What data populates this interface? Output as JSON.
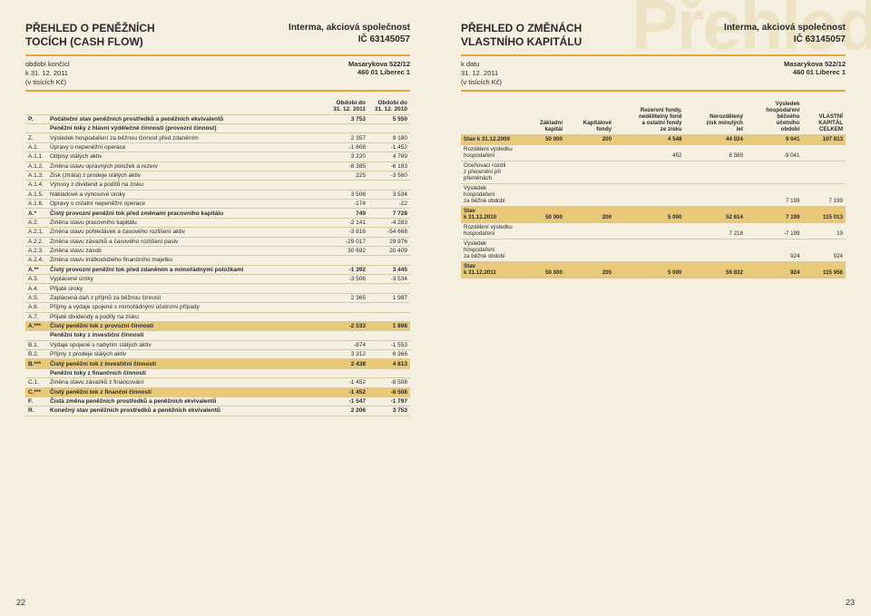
{
  "watermark": "Přehled",
  "left": {
    "title1": "PŘEHLED O PENĚŽNÍCH",
    "title2": "TOCÍCH (CASH FLOW)",
    "company1": "Interma, akciová společnost",
    "company2": "IČ 63145057",
    "period1": "období končící",
    "period2": "k 31. 12. 2011",
    "period3": "(v tisících Kč)",
    "addr1": "Masarykova 522/12",
    "addr2": "460 01 Liberec 1",
    "col1a": "Období do",
    "col1b": "31. 12. 2011",
    "col2a": "Období do",
    "col2b": "31. 12. 2010",
    "rows": [
      {
        "c": "P.",
        "l": "Počáteční stav peněžních prostředků a peněžních ekvivalentů",
        "a": "3 753",
        "b": "5 550",
        "bold": true
      },
      {
        "c": "",
        "l": "Peněžní toky z hlavní výdělečné činnosti (provozní činnost)",
        "a": "",
        "b": "",
        "bold": true
      },
      {
        "c": "Z.",
        "l": "Výsledek hospodaření za běžnou činnost před zdaněním",
        "a": "2 357",
        "b": "9 180"
      },
      {
        "c": "A.1.",
        "l": "Úpravy o nepeněžní operace",
        "a": "-1 608",
        "b": "-1 452"
      },
      {
        "c": "A.1.1.",
        "l": "Odpisy stálých aktiv",
        "a": "3 220",
        "b": "4 789"
      },
      {
        "c": "A.1.2.",
        "l": "Změna stavu opravných položek a rezerv",
        "a": "-8 385",
        "b": "-6 193"
      },
      {
        "c": "A.1.3.",
        "l": "Zisk (ztráta) z prodeje stálých aktiv",
        "a": "225",
        "b": "-3 560"
      },
      {
        "c": "A.1.4.",
        "l": "Výnosy z dividend a podílů na zisku",
        "a": "",
        "b": ""
      },
      {
        "c": "A.1.5.",
        "l": "Nákladové a výnosové úroky",
        "a": "3 506",
        "b": "3 534"
      },
      {
        "c": "A.1.6.",
        "l": "Opravy o ostatní nepeněžní operace",
        "a": "-174",
        "b": "-22"
      },
      {
        "c": "A.*",
        "l": "Čistý provozní peněžní tok před změnami pracovního kapitálu",
        "a": "749",
        "b": "7 728",
        "bold": true
      },
      {
        "c": "A.2.",
        "l": "Změna stavu pracovního kapitálu",
        "a": "-2 141",
        "b": "-4 283"
      },
      {
        "c": "A.2.1.",
        "l": "Změna stavu pohledávek a časového rozlišení aktiv",
        "a": "-3 816",
        "b": "-54 668"
      },
      {
        "c": "A.2.2.",
        "l": "Změna stavu závazků a časového rozlišení pasiv",
        "a": "-29 017",
        "b": "29 976"
      },
      {
        "c": "A.2.3.",
        "l": "Změna stavu zásob",
        "a": "30 692",
        "b": "20 409"
      },
      {
        "c": "A.2.4.",
        "l": "Změna stavu krátkodobého finančního majetku",
        "a": "",
        "b": ""
      },
      {
        "c": "A.**",
        "l": "Čistý provozní peněžní tok před zdaněním a mimořádnými položkami",
        "a": "-1 392",
        "b": "3 445",
        "bold": true
      },
      {
        "c": "A.3.",
        "l": "Vyplacené úroky",
        "a": "-3 506",
        "b": "-3 534"
      },
      {
        "c": "A.4.",
        "l": "Přijaté úroky",
        "a": "",
        "b": ""
      },
      {
        "c": "A.5.",
        "l": "Zaplacená daň z příjmů za běžnou činnost",
        "a": "2 365",
        "b": "1 987"
      },
      {
        "c": "A.6.",
        "l": "Příjmy a výdaje spojené s mimořádnými účetními případy",
        "a": "",
        "b": ""
      },
      {
        "c": "A.7.",
        "l": "Přijaté dividendy a podíly na zisku",
        "a": "",
        "b": ""
      },
      {
        "c": "A.***",
        "l": "Čistý peněžní tok z provozní činnosti",
        "a": "-2 533",
        "b": "1 898",
        "hl": true
      },
      {
        "c": "",
        "l": "Peněžní toky z investiční činnosti",
        "a": "",
        "b": "",
        "bold": true
      },
      {
        "c": "B.1.",
        "l": "Výdaje spojené s nabytím stálých aktiv",
        "a": "-874",
        "b": "-1 553"
      },
      {
        "c": "B.2.",
        "l": "Příjmy z prodeje stálých aktiv",
        "a": "3 312",
        "b": "6 366"
      },
      {
        "c": "B.***",
        "l": "Čistý peněžní tok z investiční činnosti",
        "a": "2 438",
        "b": "4 813",
        "hl": true
      },
      {
        "c": "",
        "l": "Peněžní toky z finančních činností",
        "a": "",
        "b": "",
        "bold": true
      },
      {
        "c": "C.1.",
        "l": "Změna stavu závazků z financování",
        "a": "-1 452",
        "b": "-8 508"
      },
      {
        "c": "C.***",
        "l": "Čistý peněžní tok z finanční činnosti",
        "a": "-1 452",
        "b": "-8 508",
        "hl": true
      },
      {
        "c": "F.",
        "l": "Čistá změna peněžních prostředků a peněžních ekvivalentů",
        "a": "-1 547",
        "b": "-1 797",
        "bold": true
      },
      {
        "c": "R.",
        "l": "Konečný stav peněžních prostředků a peněžních ekvivalentů",
        "a": "2 206",
        "b": "3 753",
        "bold": true
      }
    ],
    "pagenum": "22"
  },
  "right": {
    "title1": "PŘEHLED O ZMĚNÁCH",
    "title2": "VLASTNÍHO KAPITÁLU",
    "company1": "Interma, akciová společnost",
    "company2": "IČ 63145057",
    "period1": "k datu",
    "period2": "31. 12. 2011",
    "period3": "(v tisících Kč)",
    "addr1": "Masarykova 522/12",
    "addr2": "460 01 Liberec 1",
    "h1": "Základní\nkapitál",
    "h2": "Kapitálové\nfondy",
    "h3": "Rezervní fondy,\nnedělitelný fond\na ostatní fondy\nze zisku",
    "h4": "Nerozdělený\nzisk minulých\nlet",
    "h5": "Výsledek\nhospodaření\nběžného\núčetního\nobdobí",
    "h6": "VLASTNÍ\nKAPITÁL\nCELKEM",
    "rows": [
      {
        "l": "Stav k 31.12.2009",
        "v": [
          "50 000",
          "200",
          "4 548",
          "44 024",
          "9 041",
          "107 813"
        ],
        "hl": true
      },
      {
        "l": "Rozdělení výsledku\nhospodaření",
        "v": [
          "",
          "",
          "452",
          "8 589",
          "-9 041",
          ""
        ]
      },
      {
        "l": "Oceňovací rozdíl\nz přecenění při\npřeměnách",
        "v": [
          "",
          "",
          "",
          "",
          "",
          ""
        ]
      },
      {
        "l": "Výsledek\nhospodaření\nza běžné období",
        "v": [
          "",
          "",
          "",
          "",
          "7 199",
          "7 199"
        ]
      },
      {
        "l": "Stav\nk 31.12.2010",
        "v": [
          "50 000",
          "200",
          "5 000",
          "52 614",
          "7 199",
          "115 013"
        ],
        "hl": true
      },
      {
        "l": "Rozdělení výsledku\nhospodaření",
        "v": [
          "",
          "",
          "",
          "7 218",
          "-7 199",
          "19"
        ]
      },
      {
        "l": "Výsledek\nhospodaření\nza běžné období",
        "v": [
          "",
          "",
          "",
          "",
          "924",
          "924"
        ]
      },
      {
        "l": "Stav\nk 31.12.2011",
        "v": [
          "50 000",
          "200",
          "5 000",
          "59 832",
          "924",
          "115 956"
        ],
        "hl": true
      }
    ],
    "pagenum": "23"
  }
}
